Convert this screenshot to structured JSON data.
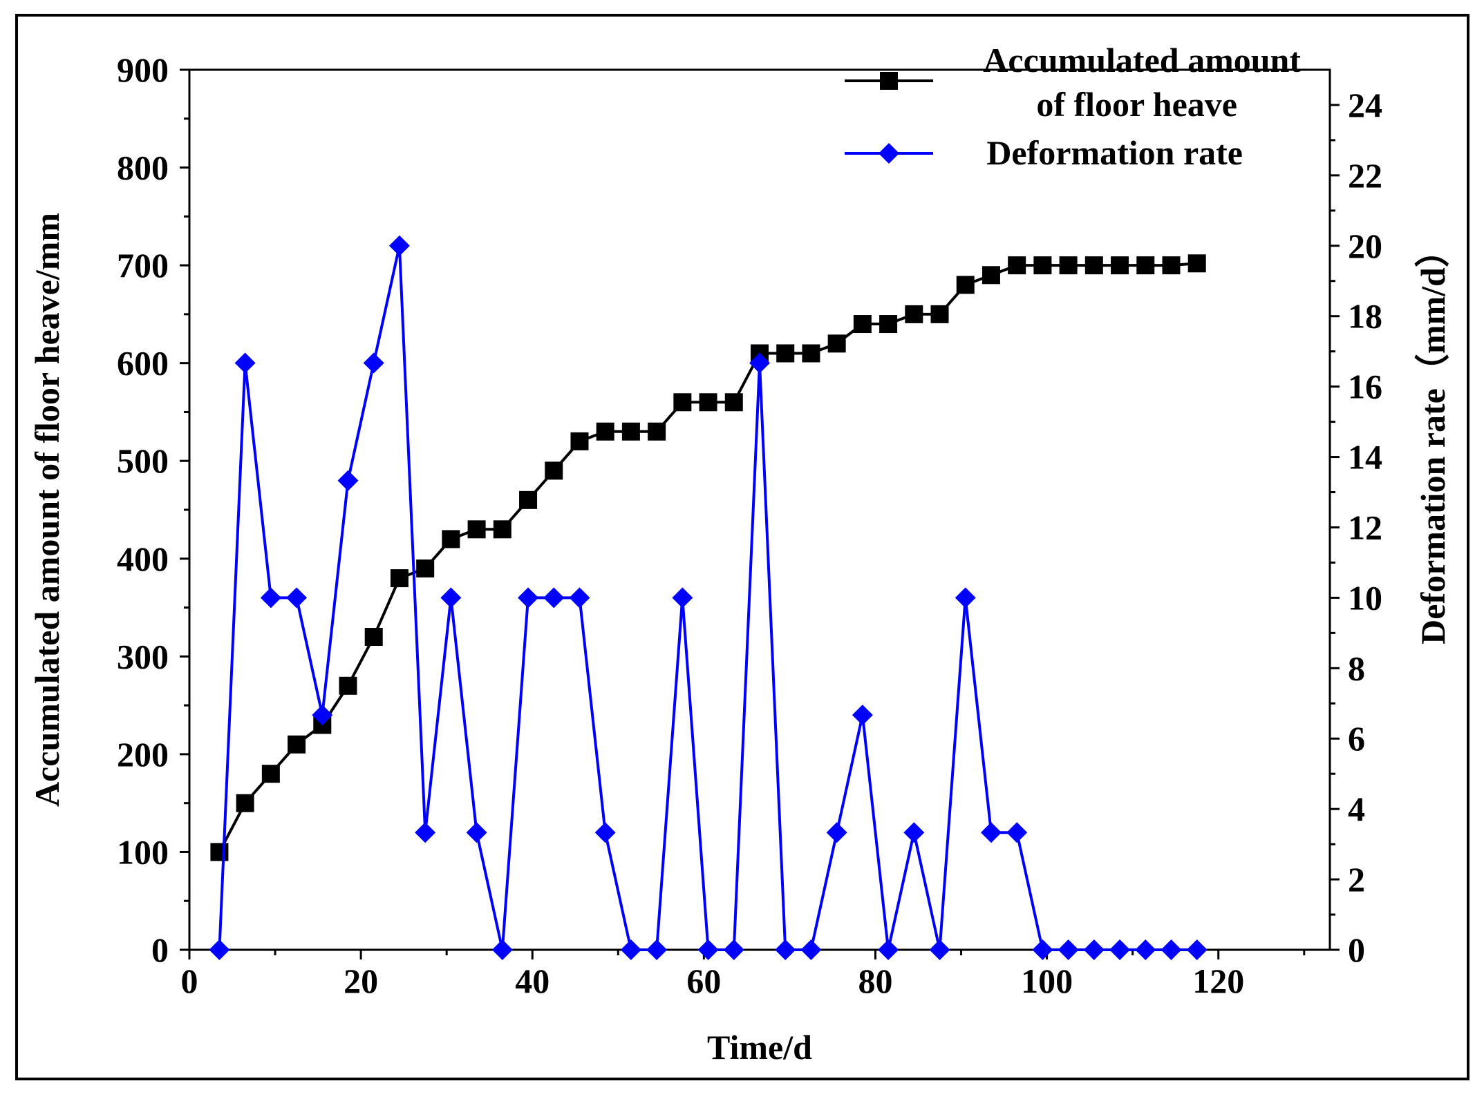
{
  "chart_data": {
    "type": "line",
    "title": "",
    "xlabel": "Time/d",
    "ylabel_left": "Accumulated amount of floor heave/mm",
    "ylabel_right": "Deformation rate（mm/d）",
    "xlim": [
      0,
      133
    ],
    "ylim_left": [
      0,
      900
    ],
    "ylim_right": [
      0,
      25
    ],
    "x_ticks": [
      "0",
      "20",
      "40",
      "60",
      "80",
      "100",
      "120"
    ],
    "y_left_ticks": [
      "0",
      "100",
      "200",
      "300",
      "400",
      "500",
      "600",
      "700",
      "800",
      "900"
    ],
    "y_right_ticks": [
      "0",
      "2",
      "4",
      "6",
      "8",
      "10",
      "12",
      "14",
      "16",
      "18",
      "20",
      "22",
      "24"
    ],
    "legend": {
      "position": "top-right",
      "line1": "Accumulated amount",
      "line2": "of floor heave",
      "line3": "Deformation rate"
    },
    "series": [
      {
        "name": "Accumulated amount of floor heave",
        "axis": "left",
        "color": "#000000",
        "marker": "square",
        "x": [
          3.5,
          6.5,
          9.5,
          12.5,
          15.5,
          18.5,
          21.5,
          24.5,
          27.5,
          30.5,
          33.5,
          36.5,
          39.5,
          42.5,
          45.5,
          48.5,
          51.5,
          54.5,
          57.5,
          60.5,
          63.5,
          66.5,
          69.5,
          72.5,
          75.5,
          78.5,
          81.5,
          84.5,
          87.5,
          90.5,
          93.5,
          96.5,
          99.5,
          102.5,
          105.5,
          108.5,
          111.5,
          114.5,
          117.5
        ],
        "values": [
          100,
          150,
          180,
          210,
          230,
          270,
          320,
          380,
          390,
          420,
          430,
          430,
          460,
          490,
          520,
          530,
          530,
          530,
          560,
          560,
          560,
          610,
          610,
          610,
          620,
          640,
          640,
          650,
          650,
          680,
          690,
          700,
          700,
          700,
          700,
          700,
          700,
          700,
          702
        ]
      },
      {
        "name": "Deformation rate",
        "axis": "right",
        "color": "#0000ff",
        "marker": "diamond",
        "x": [
          3.5,
          6.5,
          9.5,
          12.5,
          15.5,
          18.5,
          21.5,
          24.5,
          27.5,
          30.5,
          33.5,
          36.5,
          39.5,
          42.5,
          45.5,
          48.5,
          51.5,
          54.5,
          57.5,
          60.5,
          63.5,
          66.5,
          69.5,
          72.5,
          75.5,
          78.5,
          81.5,
          84.5,
          87.5,
          90.5,
          93.5,
          96.5,
          99.5,
          102.5,
          105.5,
          108.5,
          111.5,
          114.5,
          117.5
        ],
        "values": [
          0,
          16.67,
          10,
          10,
          6.67,
          13.33,
          16.67,
          20,
          3.33,
          10,
          3.33,
          0,
          10,
          10,
          10,
          3.33,
          0,
          0,
          10,
          0,
          0,
          16.67,
          0,
          0,
          3.33,
          6.67,
          0,
          3.33,
          0,
          10,
          3.33,
          3.33,
          0,
          0,
          0,
          0,
          0,
          0,
          0
        ]
      }
    ]
  }
}
